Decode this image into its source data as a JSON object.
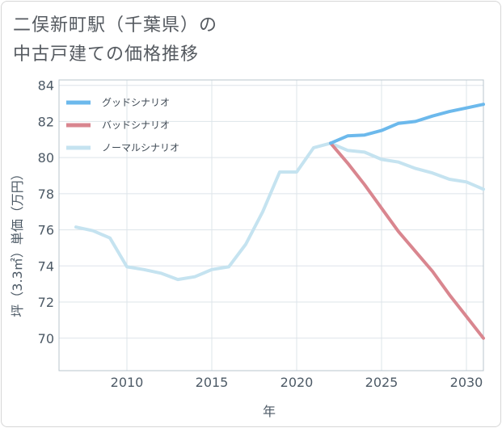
{
  "title_line1": "二俣新町駅（千葉県）の",
  "title_line2": "中古戸建ての価格推移",
  "chart_data": {
    "type": "line",
    "title": "二俣新町駅（千葉県）の中古戸建ての価格推移",
    "xlabel": "年",
    "ylabel": "坪（3.3㎡）単価（万円）",
    "xlim": [
      2006,
      2031
    ],
    "ylim": [
      68.2,
      84.3
    ],
    "xticks": [
      2010,
      2015,
      2020,
      2025,
      2030
    ],
    "yticks": [
      70,
      72,
      74,
      76,
      78,
      80,
      82,
      84
    ],
    "legend_position": "top-left",
    "series": [
      {
        "name": "グッドシナリオ",
        "color": "#6cb9ec",
        "x": [
          2022,
          2023,
          2024,
          2025,
          2026,
          2027,
          2028,
          2029,
          2030,
          2031
        ],
        "y": [
          80.8,
          81.2,
          81.25,
          81.5,
          81.9,
          82.0,
          82.3,
          82.55,
          82.75,
          82.95
        ]
      },
      {
        "name": "バッドシナリオ",
        "color": "#d9868f",
        "x": [
          2022,
          2023,
          2024,
          2025,
          2026,
          2027,
          2028,
          2029,
          2030,
          2031
        ],
        "y": [
          80.8,
          79.7,
          78.5,
          77.2,
          75.9,
          74.8,
          73.7,
          72.4,
          71.2,
          70.0
        ]
      },
      {
        "name": "ノーマルシナリオ",
        "color": "#c5e3f0",
        "x": [
          2007,
          2008,
          2009,
          2010,
          2011,
          2012,
          2013,
          2014,
          2015,
          2016,
          2017,
          2018,
          2019,
          2020,
          2021,
          2022,
          2023,
          2024,
          2025,
          2026,
          2027,
          2028,
          2029,
          2030,
          2031
        ],
        "y": [
          76.15,
          75.95,
          75.55,
          73.95,
          73.8,
          73.6,
          73.25,
          73.4,
          73.8,
          73.95,
          75.2,
          77.0,
          79.2,
          79.2,
          80.55,
          80.8,
          80.4,
          80.3,
          79.9,
          79.75,
          79.4,
          79.15,
          78.8,
          78.65,
          78.25
        ]
      }
    ]
  }
}
